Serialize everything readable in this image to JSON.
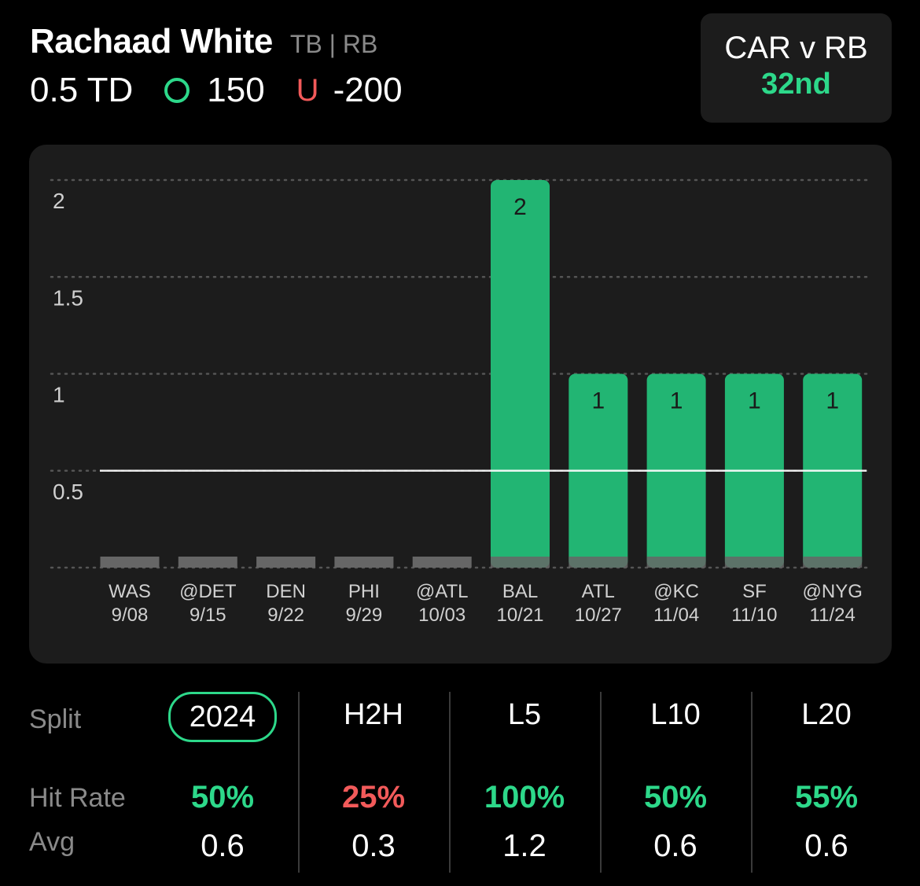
{
  "player": {
    "name": "Rachaad White",
    "team_pos": "TB | RB"
  },
  "prop": {
    "line": "0.5 TD",
    "over_odds": "150",
    "under_label": "U",
    "under_odds": "-200"
  },
  "matchup": {
    "title": "CAR v RB",
    "rank": "32nd"
  },
  "colors": {
    "green": "#2dd88a",
    "bar_green": "#22b573",
    "red": "#f25a5a",
    "zero_bar": "#666666"
  },
  "chart_data": {
    "type": "bar",
    "categories": [
      "WAS",
      "@DET",
      "DEN",
      "PHI",
      "@ATL",
      "BAL",
      "ATL",
      "@KC",
      "SF",
      "@NYG"
    ],
    "dates": [
      "9/08",
      "9/15",
      "9/22",
      "9/29",
      "10/03",
      "10/21",
      "10/27",
      "11/04",
      "11/10",
      "11/24"
    ],
    "values": [
      0,
      0,
      0,
      0,
      0,
      2,
      1,
      1,
      1,
      1
    ],
    "ylim": [
      0,
      2
    ],
    "yticks": [
      "0.5",
      "1",
      "1.5",
      "2"
    ],
    "line_value": 0.5,
    "title": "",
    "xlabel": "",
    "ylabel": ""
  },
  "splits": {
    "row_labels": {
      "split": "Split",
      "hit_rate": "Hit Rate",
      "avg": "Avg"
    },
    "columns": [
      {
        "label": "2024",
        "hit_rate": "50%",
        "hit_color": "#2dd88a",
        "avg": "0.6",
        "active": true
      },
      {
        "label": "H2H",
        "hit_rate": "25%",
        "hit_color": "#f25a5a",
        "avg": "0.3",
        "active": false
      },
      {
        "label": "L5",
        "hit_rate": "100%",
        "hit_color": "#2dd88a",
        "avg": "1.2",
        "active": false
      },
      {
        "label": "L10",
        "hit_rate": "50%",
        "hit_color": "#2dd88a",
        "avg": "0.6",
        "active": false
      },
      {
        "label": "L20",
        "hit_rate": "55%",
        "hit_color": "#2dd88a",
        "avg": "0.6",
        "active": false
      }
    ]
  }
}
